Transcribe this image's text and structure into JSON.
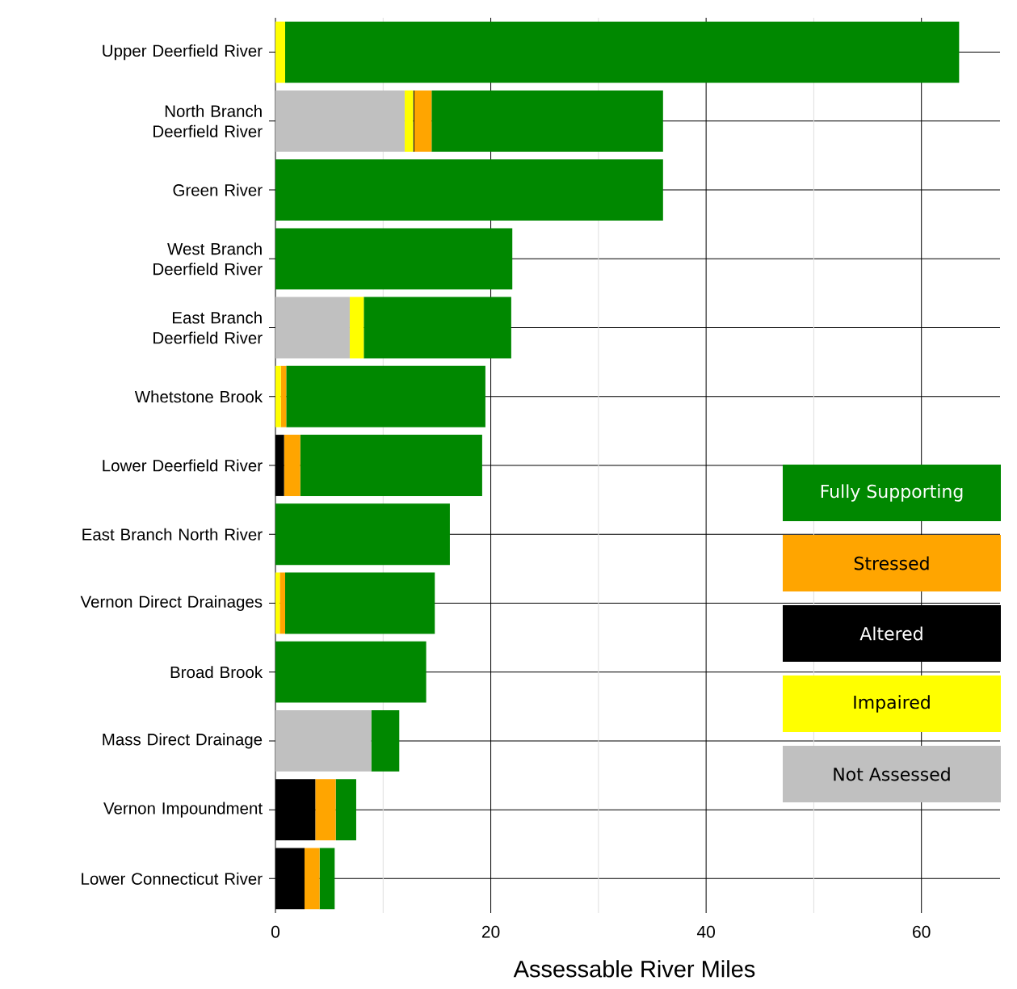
{
  "chart_data": {
    "type": "bar",
    "orientation": "horizontal",
    "stacked": true,
    "xlabel": "Assessable River Miles",
    "categories": [
      "Upper Deerfield River",
      "North Branch Deerfield River",
      "Green River",
      "West Branch Deerfield River",
      "East Branch Deerfield River",
      "Whetstone Brook",
      "Lower Deerfield River",
      "East Branch North River",
      "Vernon Direct Drainages",
      "Broad Brook",
      "Mass Direct Drainage",
      "Vernon Impoundment",
      "Lower Connecticut River"
    ],
    "series": [
      {
        "name": "Not Assessed",
        "color": "#c0c0c0",
        "values": [
          0,
          12.0,
          0,
          0,
          6.9,
          0,
          0,
          0,
          0,
          0,
          8.9,
          0,
          0
        ]
      },
      {
        "name": "Impaired",
        "color": "#ffff00",
        "values": [
          0.9,
          0.8,
          0,
          0,
          1.3,
          0.5,
          0,
          0,
          0.4,
          0,
          0,
          0,
          0
        ]
      },
      {
        "name": "Altered",
        "color": "#000000",
        "values": [
          0,
          0.1,
          0,
          0,
          0,
          0,
          0.8,
          0,
          0,
          0,
          0,
          3.7,
          2.7
        ]
      },
      {
        "name": "Stressed",
        "color": "#ffa500",
        "values": [
          0,
          1.6,
          0,
          0,
          0,
          0.5,
          1.5,
          0,
          0.5,
          0,
          0,
          1.9,
          1.4
        ]
      },
      {
        "name": "Fully Supporting",
        "color": "#008800",
        "values": [
          62.6,
          21.5,
          36.0,
          22.0,
          13.7,
          18.5,
          16.9,
          16.2,
          13.9,
          14.0,
          2.6,
          1.9,
          1.4
        ]
      }
    ],
    "xlim": [
      0,
      66.7
    ],
    "xticks": [
      0,
      {
        "value": 10,
        "label": null
      },
      20,
      {
        "value": 30,
        "label": null
      },
      40,
      {
        "value": 50,
        "label": null
      },
      60
    ],
    "grid": true,
    "legend": "right"
  }
}
